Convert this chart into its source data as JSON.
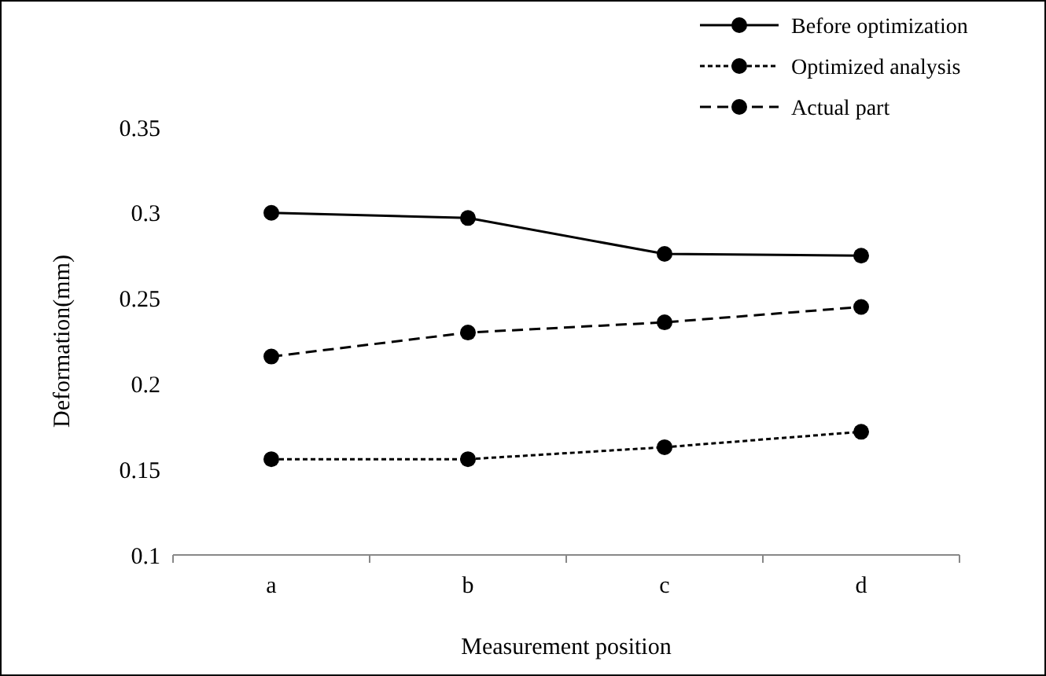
{
  "chart_data": {
    "type": "line",
    "xlabel": "Measurement  position",
    "ylabel": "Deformation(mm)",
    "categories": [
      "a",
      "b",
      "c",
      "d"
    ],
    "ylim": [
      0.1,
      0.35
    ],
    "yticks": [
      0.1,
      0.15,
      0.2,
      0.25,
      0.3,
      0.35
    ],
    "grid": false,
    "legend": "top right",
    "marker": "circle",
    "series": [
      {
        "name": "Before optimization",
        "color": "#000000",
        "line_style": "solid",
        "values": [
          0.3,
          0.297,
          0.276,
          0.275
        ]
      },
      {
        "name": "Optimized analysis",
        "color": "#000000",
        "line_style": "dotted",
        "values": [
          0.156,
          0.156,
          0.163,
          0.172
        ]
      },
      {
        "name": "Actual part",
        "color": "#000000",
        "line_style": "dashed",
        "values": [
          0.216,
          0.23,
          0.236,
          0.245
        ]
      }
    ]
  }
}
